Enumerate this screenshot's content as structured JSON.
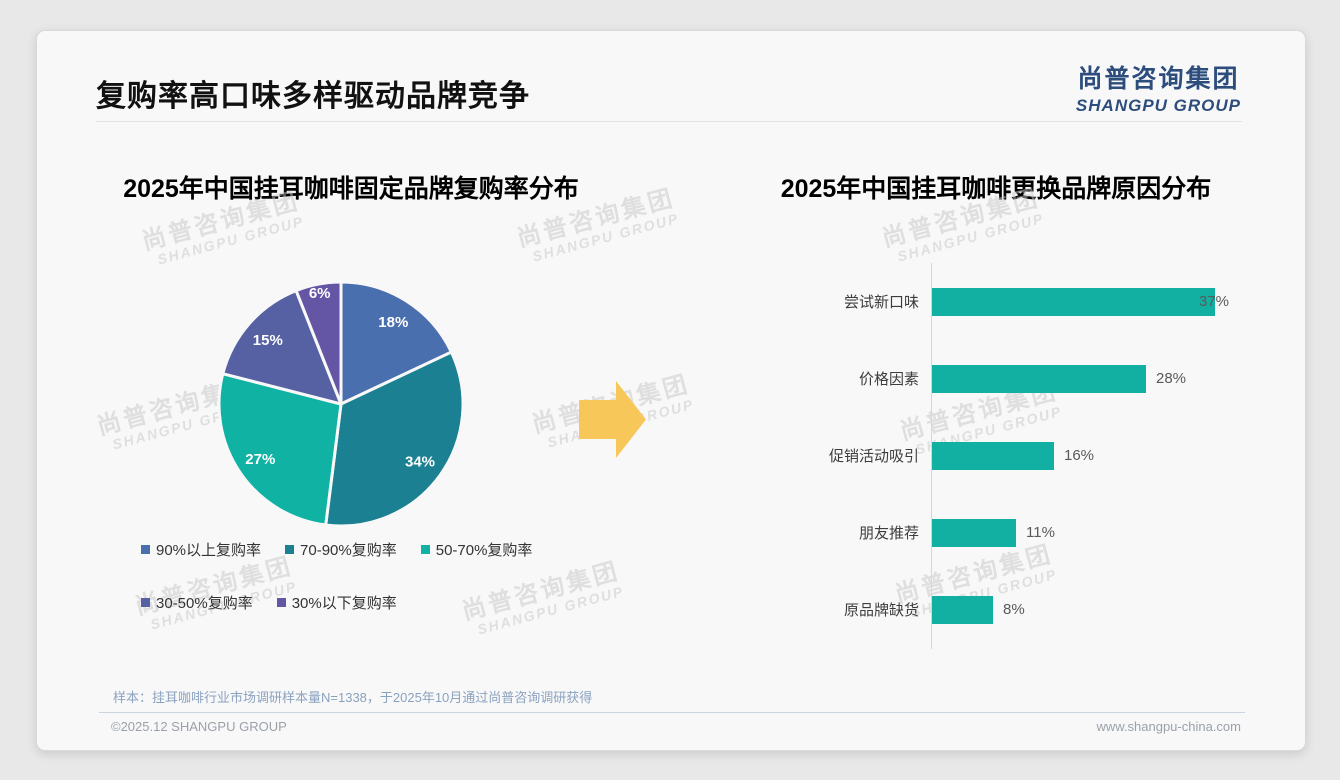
{
  "slide": {
    "title": "复购率高口味多样驱动品牌竞争"
  },
  "logo": {
    "cn": "尚普咨询集团",
    "en": "SHANGPU GROUP"
  },
  "watermark": {
    "cn": "尚普咨询集团",
    "en": "SHANGPU GROUP"
  },
  "decorations": {
    "arrow_icon": "right-block-arrow",
    "arrow_color": "#f8c75a"
  },
  "chart_data": [
    {
      "type": "pie",
      "title": "2025年中国挂耳咖啡固定品牌复购率分布",
      "labels": [
        "90%以上复购率",
        "70-90%复购率",
        "50-70%复购率",
        "30-50%复购率",
        "30%以下复购率"
      ],
      "values": [
        18,
        34,
        27,
        15,
        6
      ],
      "colors": [
        "#4a6fae",
        "#1b8091",
        "#0fb2a3",
        "#5561a3",
        "#6455a5"
      ],
      "data_label_format": "{value}%",
      "start_angle_deg": 0,
      "direction": "clockwise",
      "legend_position": "bottom"
    },
    {
      "type": "bar",
      "orientation": "horizontal",
      "title": "2025年中国挂耳咖啡更换品牌原因分布",
      "categories": [
        "尝试新口味",
        "价格因素",
        "促销活动吸引",
        "朋友推荐",
        "原品牌缺货"
      ],
      "values": [
        37,
        28,
        16,
        11,
        8
      ],
      "bar_color": "#12b0a3",
      "data_label_format": "{value}%",
      "xlim": [
        0,
        40
      ],
      "grid": false,
      "axis_line": true
    }
  ],
  "footer": {
    "note": "样本：挂耳咖啡行业市场调研样本量N=1338，于2025年10月通过尚普咨询调研获得",
    "copyright": "©2025.12 SHANGPU GROUP",
    "website": "www.shangpu-china.com"
  }
}
